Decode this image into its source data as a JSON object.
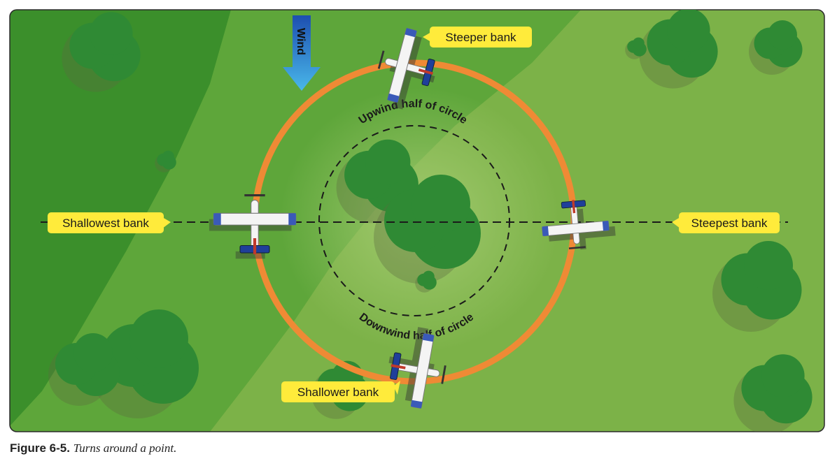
{
  "diagram": {
    "wind_label": "Wind",
    "upwind_label": "Upwind half of circle",
    "downwind_label": "Downwind half of circle",
    "callouts": {
      "steeper": "Steeper bank",
      "shallowest": "Shallowest bank",
      "steepest": "Steepest bank",
      "shallower": "Shallower bank"
    }
  },
  "caption": {
    "number": "Figure 6-5.",
    "text": "Turns around a point."
  },
  "colors": {
    "field_dark": "#3f8f2c",
    "field_light": "#86b84c",
    "path_orange": "#ef8a35",
    "callout_yellow": "#ffeb3b",
    "tree_green": "#2f8a34",
    "wind_blue": "#2a78c8",
    "plane_blue": "#1f3f9a"
  }
}
